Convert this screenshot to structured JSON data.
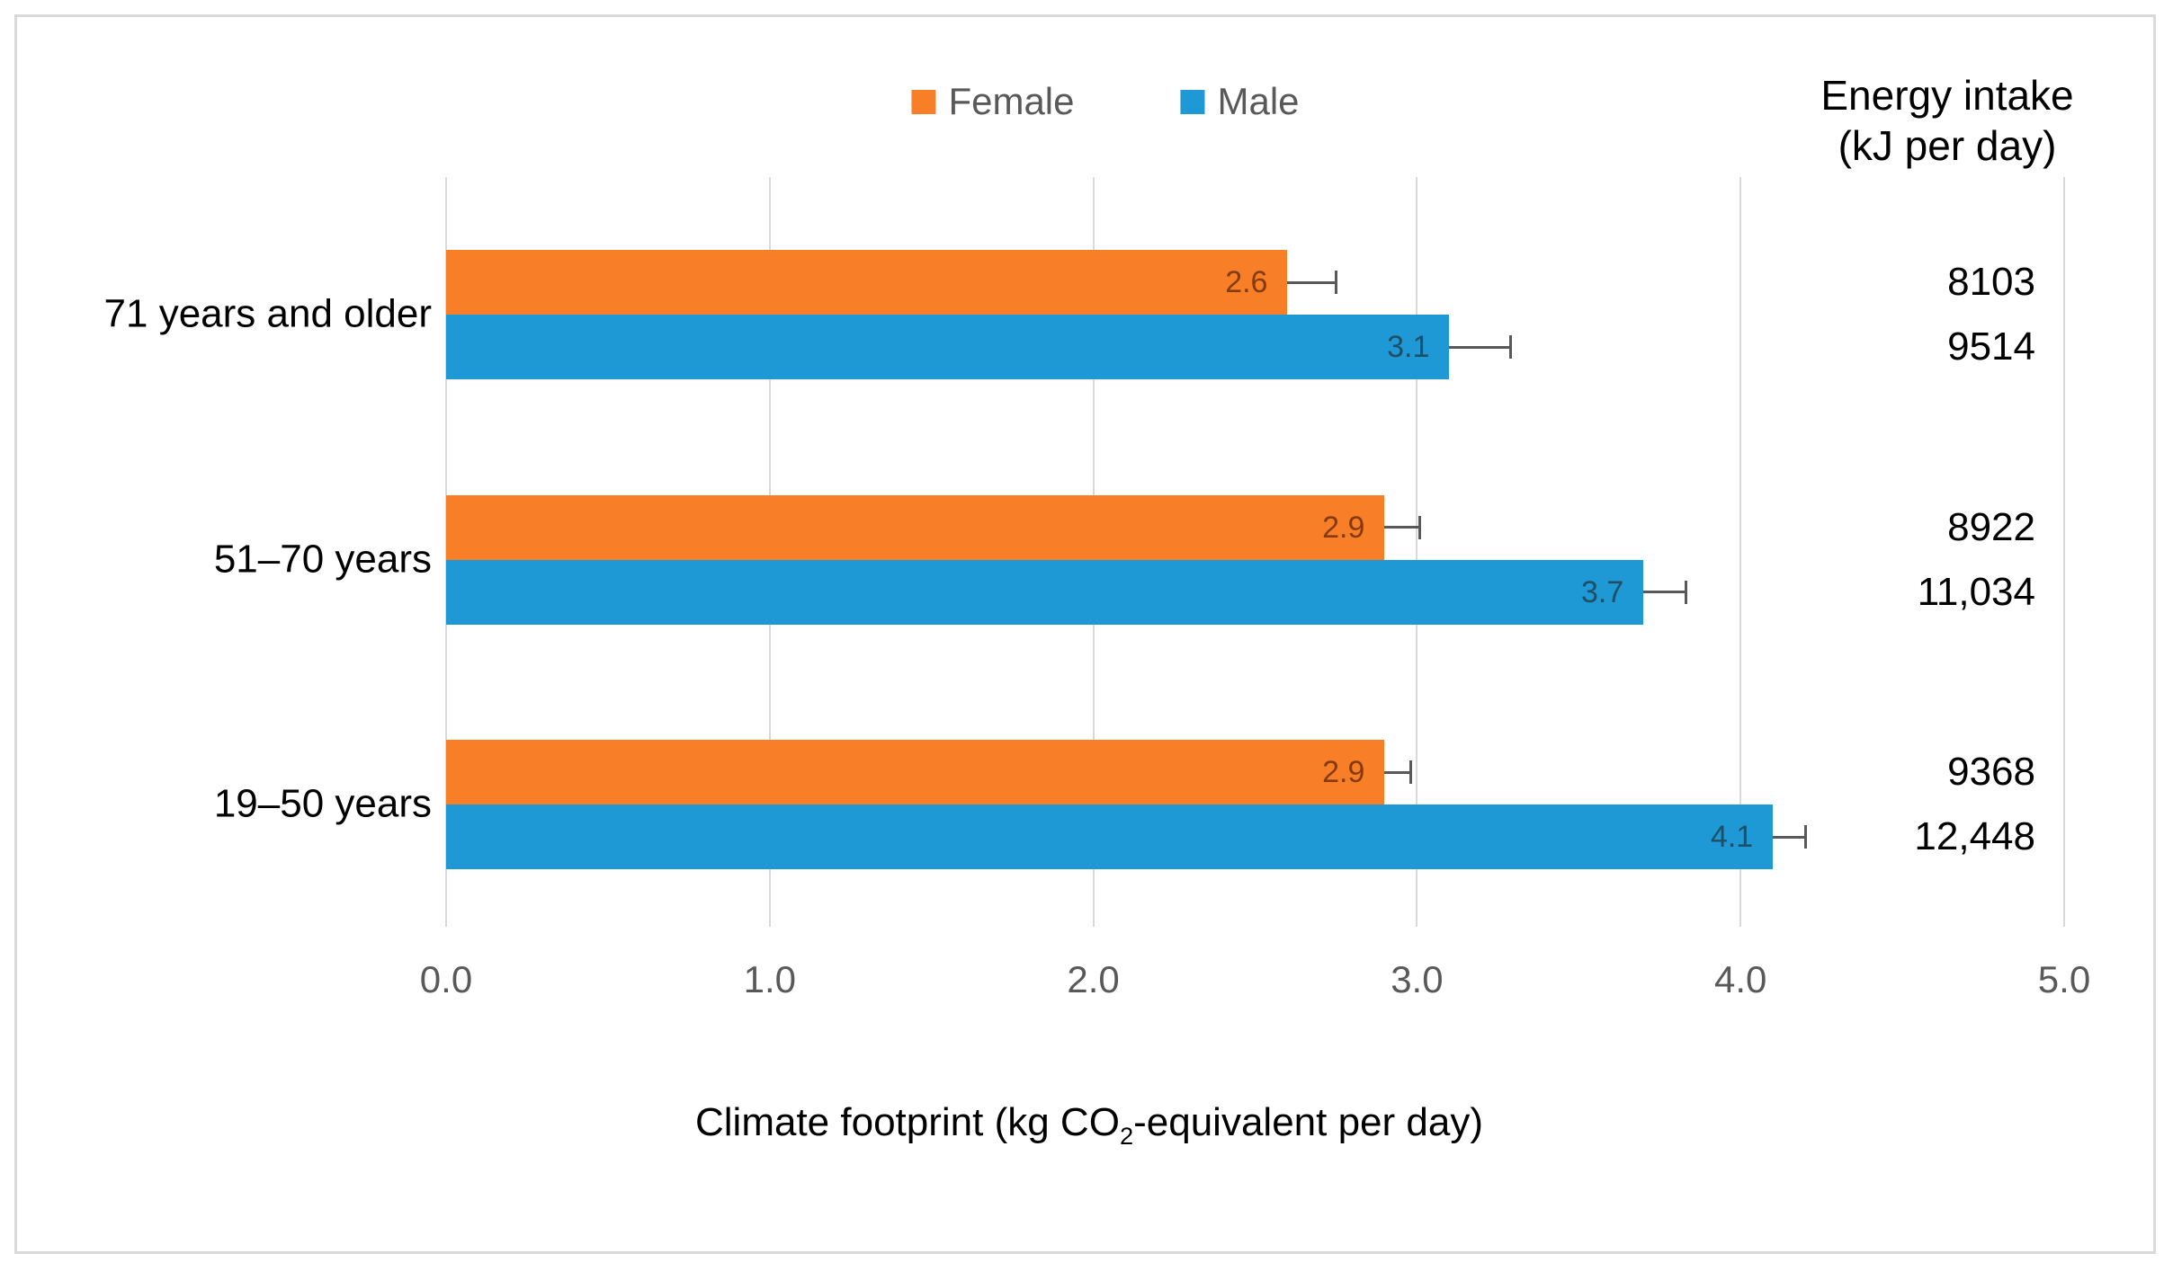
{
  "legend": {
    "items": [
      {
        "label": "Female"
      },
      {
        "label": "Male"
      }
    ]
  },
  "right_column": {
    "header_line1": "Energy intake",
    "header_line2": "(kJ per day)"
  },
  "axis": {
    "title_parts": {
      "pre": "Climate footprint (kg CO",
      "sub": "2",
      "post": "-equivalent per day)"
    }
  },
  "colors": {
    "female": "#F87E27",
    "male": "#1E99D5",
    "gridline": "#D9D9D9",
    "figure_border": "#DADADA",
    "tick_text": "#595959",
    "legend_text": "#595959",
    "error_bar": "#595959",
    "female_bar_label": "#843B0F",
    "male_bar_label": "#1D4F66",
    "text": "#000000"
  },
  "chart_data": {
    "type": "bar",
    "orientation": "horizontal",
    "categories": [
      "71 years and older",
      "51–70 years",
      "19–50 years"
    ],
    "series": [
      {
        "name": "Female",
        "color": "#F87E27",
        "values": [
          2.6,
          2.9,
          2.9
        ],
        "errors_plus": [
          0.15,
          0.11,
          0.08
        ],
        "energy_intake_kj_per_day": [
          "8103",
          "8922",
          "9368"
        ],
        "label_color": "#843B0F"
      },
      {
        "name": "Male",
        "color": "#1E99D5",
        "values": [
          3.1,
          3.7,
          4.1
        ],
        "errors_plus": [
          0.19,
          0.13,
          0.1
        ],
        "energy_intake_kj_per_day": [
          "9514",
          "11,034",
          "12,448"
        ],
        "label_color": "#1D4F66"
      }
    ],
    "xlabel": "Climate footprint (kg CO2-equivalent per day)",
    "right_column_header": "Energy intake (kJ per day)",
    "xlim": [
      0,
      5
    ],
    "x_ticks": [
      "0.0",
      "1.0",
      "2.0",
      "3.0",
      "4.0",
      "5.0"
    ],
    "grid": true,
    "legend_position": "top-center",
    "bar_value_labels": "inside-end",
    "error_bars": "plus-direction-only"
  }
}
